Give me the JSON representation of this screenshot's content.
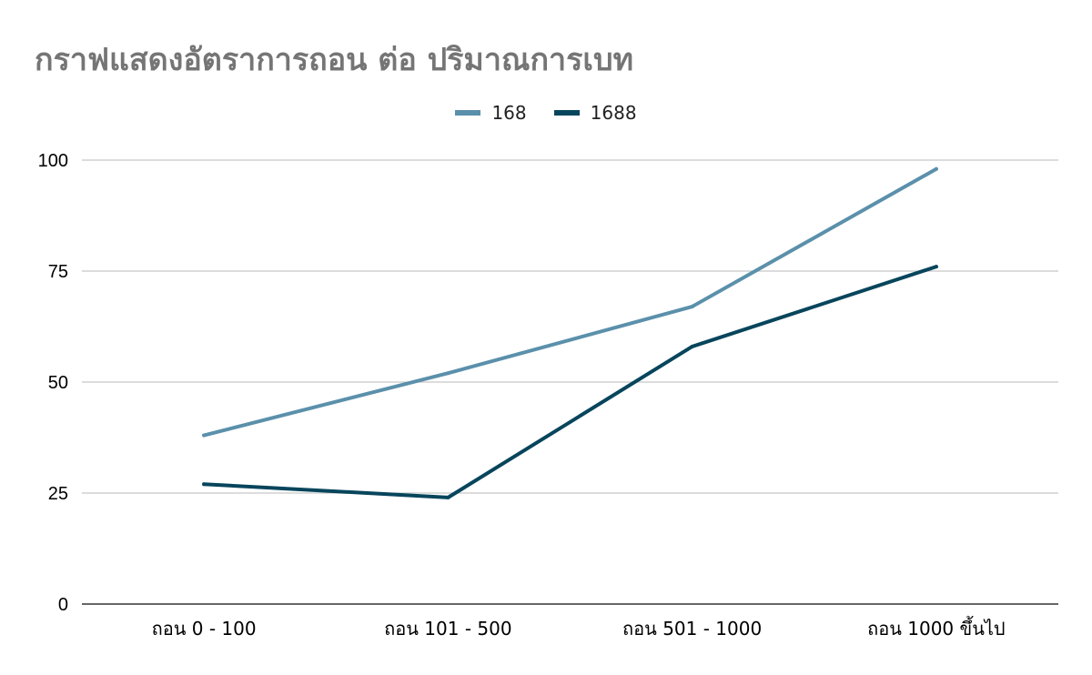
{
  "chart_data": {
    "type": "line",
    "title": "กราฟแสดงอัตราการถอน ต่อ ปริมาณการเบท",
    "categories": [
      "ถอน 0 - 100",
      "ถอน 101 - 500",
      "ถอน 501 - 1000",
      "ถอน 1000 ขึ้นไป"
    ],
    "series": [
      {
        "name": "168",
        "color": "#5b90ab",
        "values": [
          38,
          52,
          67,
          98
        ]
      },
      {
        "name": "1688",
        "color": "#07455c",
        "values": [
          27,
          24,
          58,
          76
        ]
      }
    ],
    "ylim": [
      0,
      100
    ],
    "yticks": [
      "0",
      "25",
      "50",
      "75",
      "100"
    ],
    "grid": true,
    "legend_position": "top-center"
  }
}
